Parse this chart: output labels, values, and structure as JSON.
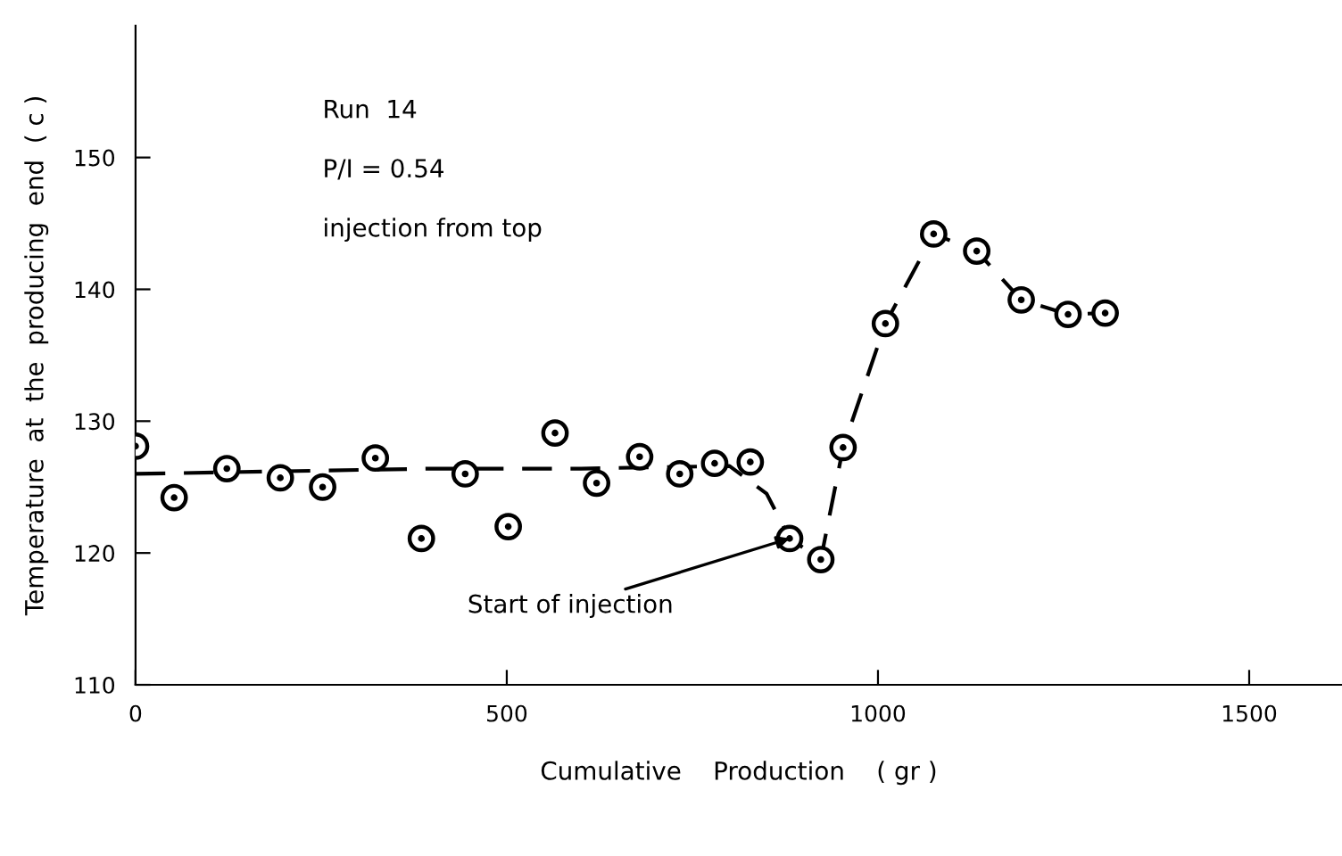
{
  "chart_data": {
    "type": "scatter",
    "xlabel": "Cumulative    Production    ( gr )",
    "ylabel": "Temperature  at  the  producing  end  ( c )",
    "xlim": [
      0,
      1625
    ],
    "ylim": [
      110,
      160
    ],
    "xticks": [
      0,
      500,
      1000,
      1500
    ],
    "yticks": [
      110,
      120,
      130,
      140,
      150
    ],
    "grid": false,
    "legend": false,
    "series": [
      {
        "color": "#000000",
        "marker": "circle",
        "x": [
          0,
          52,
          123,
          195,
          252,
          323,
          385,
          444,
          502,
          565,
          621,
          679,
          733,
          780,
          828,
          881,
          923,
          953,
          1010,
          1075,
          1133,
          1193,
          1256,
          1306
        ],
        "values": [
          128.1,
          124.2,
          126.4,
          125.7,
          125.0,
          127.2,
          121.1,
          126.0,
          122.0,
          129.1,
          125.3,
          127.3,
          126.0,
          126.8,
          126.9,
          121.1,
          119.5,
          128.0,
          137.4,
          144.2,
          142.9,
          139.2,
          138.1,
          138.2
        ]
      },
      {
        "type": "line",
        "color": "#000000",
        "line_style": "dashed",
        "x": [
          0,
          200,
          400,
          600,
          800,
          850,
          881,
          923,
          953,
          1010,
          1075,
          1133,
          1193,
          1256,
          1306
        ],
        "values": [
          126.0,
          126.2,
          126.4,
          126.4,
          126.6,
          124.5,
          121.1,
          119.5,
          128.0,
          137.4,
          144.2,
          142.9,
          139.2,
          138.1,
          138.2
        ]
      }
    ],
    "annotations": [
      "Run  14",
      "P/I = 0.54",
      "injection from top",
      {
        "text": "Start of injection",
        "x": 881,
        "y": 121.1
      }
    ]
  }
}
